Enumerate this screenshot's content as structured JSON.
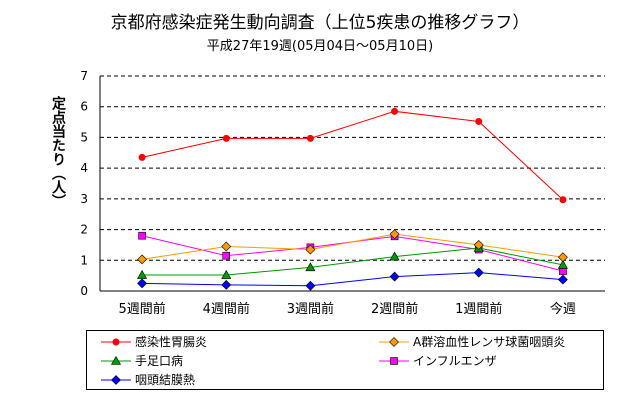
{
  "header": {
    "title": "京都府感染症発生動向調査（上位5疾患の推移グラフ）",
    "subtitle": "平成27年19週(05月04日～05月10日)"
  },
  "chart_data": {
    "type": "line",
    "title": "京都府感染症発生動向調査（上位5疾患の推移グラフ）",
    "subtitle": "平成27年19週(05月04日～05月10日)",
    "ylabel": "定点当たり（人）",
    "xlabel": "",
    "categories": [
      "5週間前",
      "4週間前",
      "3週間前",
      "2週間前",
      "1週間前",
      "今週"
    ],
    "ylim": [
      0,
      7
    ],
    "yticks": [
      "0",
      "1",
      "2",
      "3",
      "4",
      "5",
      "6",
      "7"
    ],
    "grid": "horizontal dashed",
    "legend_position": "bottom",
    "series": [
      {
        "name": "感染性胃腸炎",
        "marker": "circle",
        "color": "#ff0000",
        "values": [
          4.35,
          4.97,
          4.97,
          5.85,
          5.52,
          2.97
        ]
      },
      {
        "name": "A群溶血性レンサ球菌咽頭炎",
        "marker": "diamond",
        "color": "#ff9900",
        "values": [
          1.03,
          1.45,
          1.35,
          1.85,
          1.5,
          1.1
        ]
      },
      {
        "name": "手足口病",
        "marker": "triangle",
        "color": "#009900",
        "values": [
          0.52,
          0.52,
          0.77,
          1.12,
          1.4,
          0.85
        ]
      },
      {
        "name": "インフルエンザ",
        "marker": "square",
        "color": "#ff00ff",
        "values": [
          1.8,
          1.15,
          1.42,
          1.78,
          1.35,
          0.65
        ]
      },
      {
        "name": "咽頭結膜熱",
        "marker": "diamond",
        "color": "#0000ff",
        "values": [
          0.25,
          0.2,
          0.17,
          0.47,
          0.6,
          0.37
        ]
      }
    ]
  }
}
